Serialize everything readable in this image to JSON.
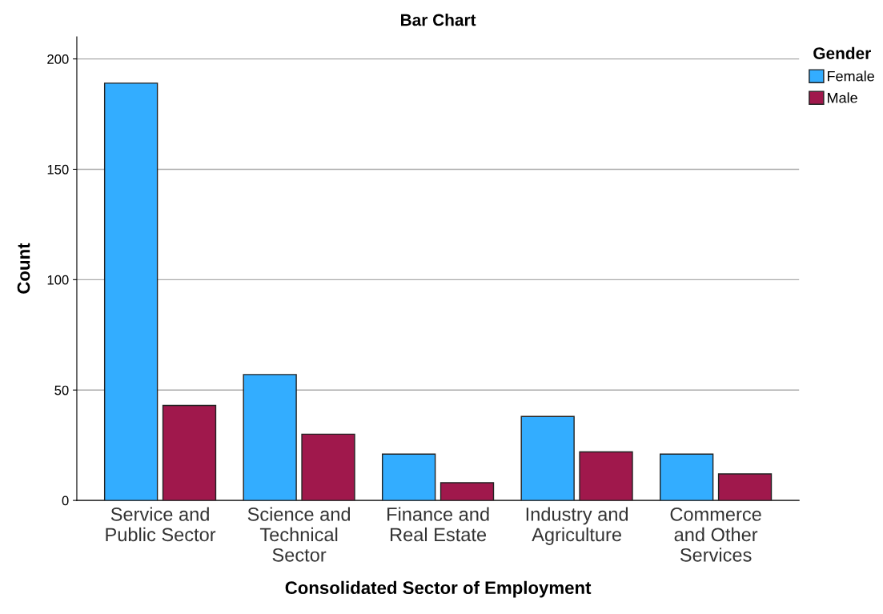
{
  "chart_data": {
    "type": "bar",
    "title": "Bar Chart",
    "xlabel": "Consolidated Sector of Employment",
    "ylabel": "Count",
    "legend_title": "Gender",
    "categories": [
      "Service and\nPublic Sector",
      "Science and\nTechnical\nSector",
      "Finance and\nReal Estate",
      "Industry and\nAgriculture",
      "Commerce\nand Other\nServices"
    ],
    "series": [
      {
        "name": "Female",
        "color": "#33adff",
        "values": [
          189,
          57,
          21,
          38,
          21
        ]
      },
      {
        "name": "Male",
        "color": "#a0184c",
        "values": [
          43,
          30,
          8,
          22,
          12
        ]
      }
    ],
    "ylim": [
      0,
      210
    ],
    "yticks": [
      0,
      50,
      100,
      150,
      200
    ],
    "grid": "y",
    "legend": "top right"
  }
}
